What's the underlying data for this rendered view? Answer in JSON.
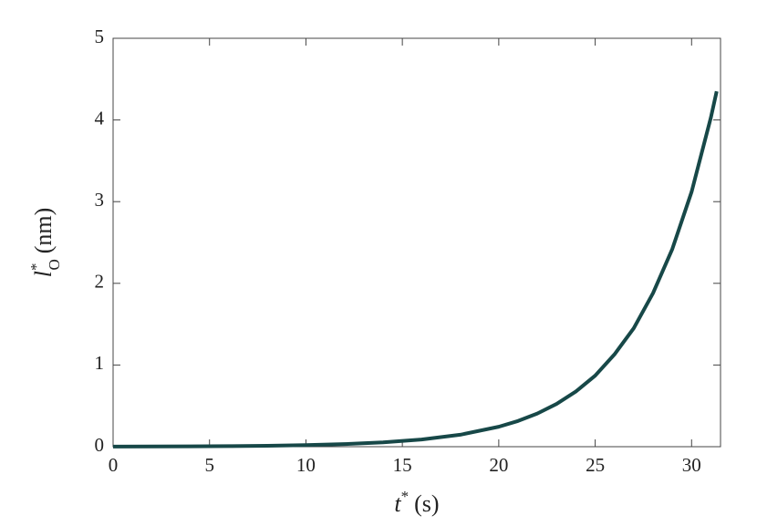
{
  "chart_data": {
    "type": "line",
    "xlabel": {
      "base": "t",
      "sup": "*",
      "rest": "(s)"
    },
    "ylabel": {
      "base": "l",
      "sup": "*",
      "sub": "O",
      "rest": "(nm)"
    },
    "x": [
      0,
      2,
      4,
      6,
      8,
      10,
      12,
      14,
      16,
      18,
      20,
      21,
      22,
      23,
      24,
      25,
      26,
      27,
      28,
      29,
      30,
      31,
      31.3
    ],
    "series": [
      {
        "color": "#174848",
        "values": [
          0.001,
          0.0025,
          0.004,
          0.007,
          0.011,
          0.019,
          0.032,
          0.053,
          0.088,
          0.146,
          0.244,
          0.315,
          0.406,
          0.524,
          0.676,
          0.87,
          1.13,
          1.45,
          1.88,
          2.42,
          3.12,
          4.03,
          4.35
        ]
      }
    ],
    "xlim": [
      0,
      31.5
    ],
    "ylim": [
      0,
      5
    ],
    "xticks": [
      0,
      5,
      10,
      15,
      20,
      25,
      30
    ],
    "yticks": [
      0,
      1,
      2,
      3,
      4,
      5
    ],
    "grid": false
  }
}
